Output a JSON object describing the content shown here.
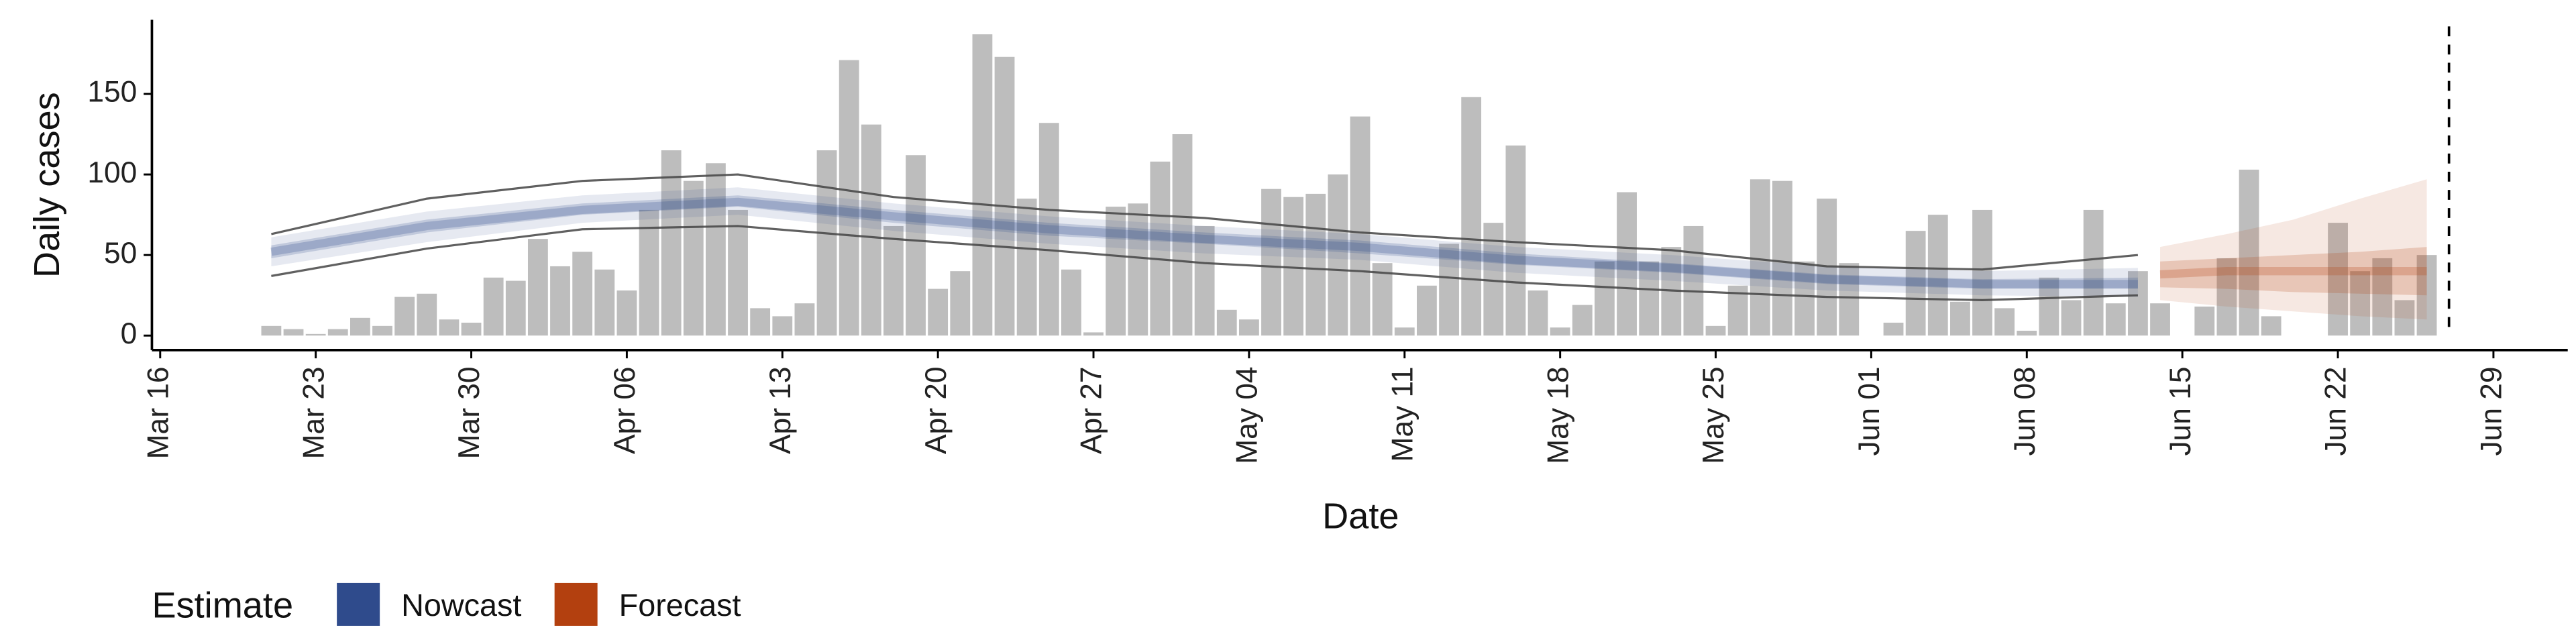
{
  "chart_data": {
    "type": "nowcast",
    "x_label": "Date",
    "y_label": "Daily cases",
    "legend_title": "Estimate",
    "xlim": [
      "Mar 16",
      "Jun 29"
    ],
    "xticks": [
      "Mar 16",
      "Mar 23",
      "Mar 30",
      "Apr 06",
      "Apr 13",
      "Apr 20",
      "Apr 27",
      "May 04",
      "May 11",
      "May 18",
      "May 25",
      "Jun 01",
      "Jun 08",
      "Jun 15",
      "Jun 22",
      "Jun 29"
    ],
    "ylim": [
      -9,
      196
    ],
    "yticks": [
      0,
      50,
      100,
      150
    ],
    "bar_color": "#bdbdbd",
    "reference_line_x": "Jun 27",
    "cases": {
      "x": [
        "Mar 21",
        "Mar 22",
        "Mar 23",
        "Mar 24",
        "Mar 25",
        "Mar 26",
        "Mar 27",
        "Mar 28",
        "Mar 29",
        "Mar 30",
        "Mar 31",
        "Apr 01",
        "Apr 02",
        "Apr 03",
        "Apr 04",
        "Apr 05",
        "Apr 06",
        "Apr 07",
        "Apr 08",
        "Apr 09",
        "Apr 10",
        "Apr 11",
        "Apr 12",
        "Apr 13",
        "Apr 14",
        "Apr 15",
        "Apr 16",
        "Apr 17",
        "Apr 18",
        "Apr 19",
        "Apr 20",
        "Apr 21",
        "Apr 22",
        "Apr 23",
        "Apr 24",
        "Apr 25",
        "Apr 26",
        "Apr 27",
        "Apr 28",
        "Apr 29",
        "Apr 30",
        "May 01",
        "May 02",
        "May 03",
        "May 04",
        "May 05",
        "May 06",
        "May 07",
        "May 08",
        "May 09",
        "May 10",
        "May 11",
        "May 12",
        "May 13",
        "May 14",
        "May 15",
        "May 16",
        "May 17",
        "May 18",
        "May 19",
        "May 20",
        "May 21",
        "May 22",
        "May 23",
        "May 24",
        "May 25",
        "May 26",
        "May 27",
        "May 28",
        "May 29",
        "May 30",
        "May 31",
        "Jun 01",
        "Jun 02",
        "Jun 03",
        "Jun 04",
        "Jun 05",
        "Jun 06",
        "Jun 07",
        "Jun 08",
        "Jun 09",
        "Jun 10",
        "Jun 11",
        "Jun 12",
        "Jun 13",
        "Jun 14",
        "Jun 15",
        "Jun 16",
        "Jun 17",
        "Jun 18",
        "Jun 19",
        "Jun 20",
        "Jun 21",
        "Jun 22",
        "Jun 23",
        "Jun 24",
        "Jun 25",
        "Jun 26"
      ],
      "values": [
        6,
        4,
        1,
        4,
        11,
        6,
        24,
        26,
        10,
        8,
        36,
        34,
        60,
        43,
        52,
        41,
        28,
        78,
        115,
        96,
        107,
        78,
        17,
        12,
        20,
        115,
        171,
        131,
        68,
        112,
        29,
        40,
        187,
        173,
        85,
        132,
        41,
        2,
        80,
        82,
        108,
        125,
        68,
        16,
        10,
        91,
        86,
        88,
        100,
        136,
        45,
        5,
        31,
        57,
        148,
        70,
        118,
        28,
        5,
        19,
        46,
        89,
        46,
        55,
        68,
        6,
        31,
        97,
        96,
        46,
        85,
        45,
        0,
        8,
        65,
        75,
        21,
        78,
        17,
        3,
        36,
        22,
        78,
        20,
        40,
        20,
        0,
        18,
        48,
        103,
        12,
        0,
        0,
        70,
        40,
        48,
        22,
        50
      ]
    },
    "series": [
      {
        "name": "Nowcast",
        "color": "#2f4b8c",
        "x": [
          "Mar 21",
          "Mar 28",
          "Apr 04",
          "Apr 11",
          "Apr 18",
          "Apr 25",
          "May 02",
          "May 09",
          "May 16",
          "May 23",
          "May 30",
          "Jun 06",
          "Jun 13"
        ],
        "median": [
          52,
          68,
          78,
          83,
          74,
          66,
          60,
          55,
          47,
          42,
          35,
          32,
          32
        ],
        "lower_outer": [
          43,
          58,
          70,
          75,
          65,
          57,
          51,
          47,
          39,
          34,
          28,
          25,
          24
        ],
        "upper_outer": [
          61,
          77,
          87,
          92,
          82,
          74,
          68,
          63,
          55,
          50,
          43,
          40,
          42
        ],
        "lower_inner": [
          48,
          64,
          75,
          80,
          70,
          62,
          57,
          51,
          44,
          39,
          32,
          29,
          29
        ],
        "upper_inner": [
          56,
          72,
          82,
          87,
          78,
          70,
          64,
          59,
          51,
          45,
          38,
          35,
          36
        ],
        "line_lower": [
          37,
          54,
          66,
          68,
          60,
          53,
          45,
          40,
          33,
          28,
          24,
          22,
          25
        ],
        "line_upper": [
          63,
          85,
          96,
          100,
          86,
          78,
          73,
          64,
          58,
          53,
          43,
          41,
          50
        ]
      },
      {
        "name": "Forecast",
        "color": "#b3400f",
        "x": [
          "Jun 14",
          "Jun 17",
          "Jun 20",
          "Jun 23",
          "Jun 26"
        ],
        "median": [
          38,
          40,
          40,
          40,
          40
        ],
        "lower_outer": [
          22,
          18,
          15,
          12,
          10
        ],
        "upper_outer": [
          55,
          63,
          72,
          85,
          97
        ],
        "lower_inner": [
          30,
          29,
          27,
          26,
          25
        ],
        "upper_inner": [
          46,
          48,
          50,
          52,
          55
        ]
      }
    ]
  }
}
